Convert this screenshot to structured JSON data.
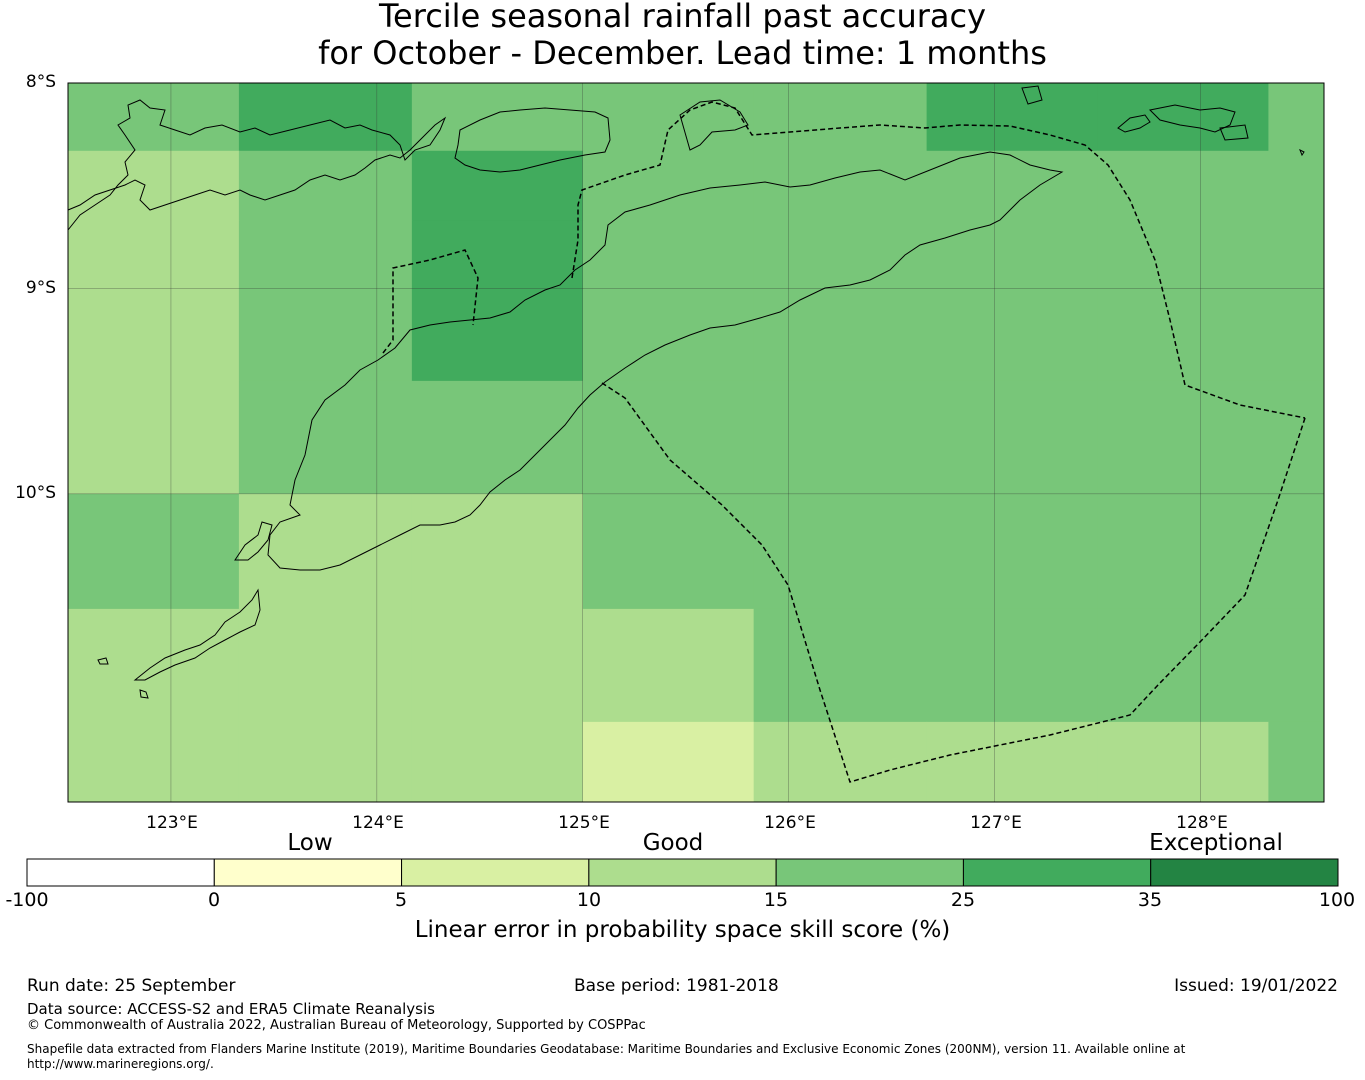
{
  "title": {
    "line1": "Tercile seasonal rainfall past accuracy",
    "line2": "for October - December. Lead time: 1 months"
  },
  "map": {
    "lat_labels": [
      "8°S",
      "9°S",
      "10°S"
    ],
    "lon_labels": [
      "123°E",
      "124°E",
      "125°E",
      "126°E",
      "127°E",
      "128°E"
    ],
    "colors": {
      "skill_0_5": "#ffffcc",
      "skill_5_10": "#d9f0a3",
      "skill_10_15": "#addd8e",
      "skill_15_25": "#78c679",
      "skill_25_35": "#41ab5d",
      "skill_35_100": "#238443",
      "grid": "#333333",
      "coast": "#000000"
    },
    "skill_grid": {
      "lon_edges": [
        122.5,
        123.33,
        124.17,
        125.0,
        125.83,
        126.67,
        127.5,
        128.33,
        128.6
      ],
      "lat_edges": [
        -8.0,
        -8.33,
        -8.67,
        -9.0,
        -9.45,
        -10.0,
        -10.56,
        -11.11,
        -11.5
      ],
      "cells": [
        [
          "15_25",
          "25_35",
          "15_25",
          "15_25",
          "15_25",
          "25_35",
          "25_35",
          "15_25"
        ],
        [
          "10_15",
          "15_25",
          "25_35",
          "15_25",
          "15_25",
          "15_25",
          "15_25",
          "15_25"
        ],
        [
          "10_15",
          "15_25",
          "25_35",
          "15_25",
          "15_25",
          "15_25",
          "15_25",
          "15_25"
        ],
        [
          "10_15",
          "15_25",
          "25_35",
          "15_25",
          "15_25",
          "15_25",
          "15_25",
          "15_25"
        ],
        [
          "10_15",
          "15_25",
          "15_25",
          "15_25",
          "15_25",
          "15_25",
          "15_25",
          "15_25"
        ],
        [
          "15_25",
          "10_15",
          "10_15",
          "15_25",
          "15_25",
          "15_25",
          "15_25",
          "15_25"
        ],
        [
          "10_15",
          "10_15",
          "10_15",
          "10_15",
          "15_25",
          "15_25",
          "15_25",
          "15_25"
        ],
        [
          "10_15",
          "10_15",
          "10_15",
          "5_10",
          "10_15",
          "10_15",
          "10_15",
          "15_25"
        ]
      ]
    }
  },
  "colorbar": {
    "categories": [
      "Low",
      "Good",
      "Exceptional"
    ],
    "ticks": [
      "-100",
      "0",
      "5",
      "10",
      "15",
      "25",
      "35",
      "100"
    ],
    "colors": [
      "#ffffff",
      "#ffffcc",
      "#d9f0a3",
      "#addd8e",
      "#78c679",
      "#41ab5d",
      "#238443"
    ],
    "xlabel": "Linear error in probability space skill score (%)"
  },
  "footer": {
    "run_date": "Run date: 25 September",
    "base_period": "Base period: 1981-2018",
    "issued": "Issued: 19/01/2022",
    "data_source": "Data source: ACCESS-S2 and ERA5 Climate Reanalysis",
    "copyright": "© Commonwealth of Australia 2022, Australian Bureau of Meteorology, Supported by COSPPac",
    "shapefile_line1": "Shapefile data extracted from Flanders Marine Institute (2019), Maritime Boundaries Geodatabase: Maritime Boundaries and Exclusive Economic Zones (200NM), version 11. Available online at",
    "shapefile_line2": "http://www.marineregions.org/."
  }
}
